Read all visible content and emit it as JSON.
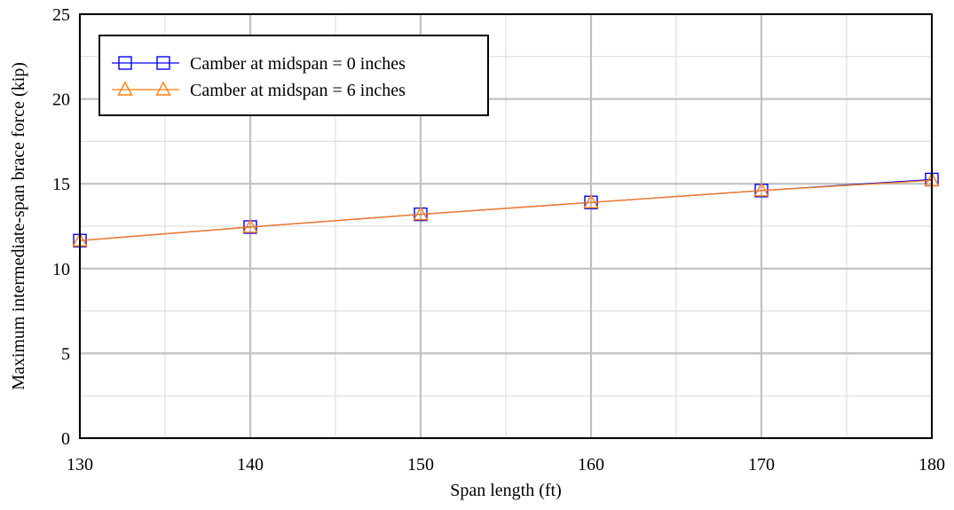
{
  "chart_data": {
    "type": "line",
    "xlabel": "Span length (ft)",
    "ylabel": "Maximum intermediate-span brace force (kip)",
    "xlim": [
      130,
      180
    ],
    "ylim": [
      0,
      25
    ],
    "xticks": [
      130,
      140,
      150,
      160,
      170,
      180
    ],
    "xtick_labels": [
      "130",
      "140",
      "150",
      "160",
      "170",
      "180"
    ],
    "yticks": [
      0,
      5,
      10,
      15,
      20,
      25
    ],
    "ytick_labels": [
      "0",
      "5",
      "10",
      "15",
      "20",
      "25"
    ],
    "minor_x_step": 5,
    "minor_y_step": 2.5,
    "grid": true,
    "legend_position": "top-left",
    "x": [
      130,
      140,
      150,
      160,
      170,
      180
    ],
    "series": [
      {
        "name": "Camber at midspan = 0 inches",
        "values": [
          11.65,
          12.45,
          13.2,
          13.9,
          14.6,
          15.25
        ],
        "color": "#0000ff",
        "marker": "square"
      },
      {
        "name": "Camber at midspan = 6 inches",
        "values": [
          11.65,
          12.45,
          13.2,
          13.9,
          14.6,
          15.2
        ],
        "color": "#ff7f0e",
        "marker": "triangle"
      }
    ]
  }
}
